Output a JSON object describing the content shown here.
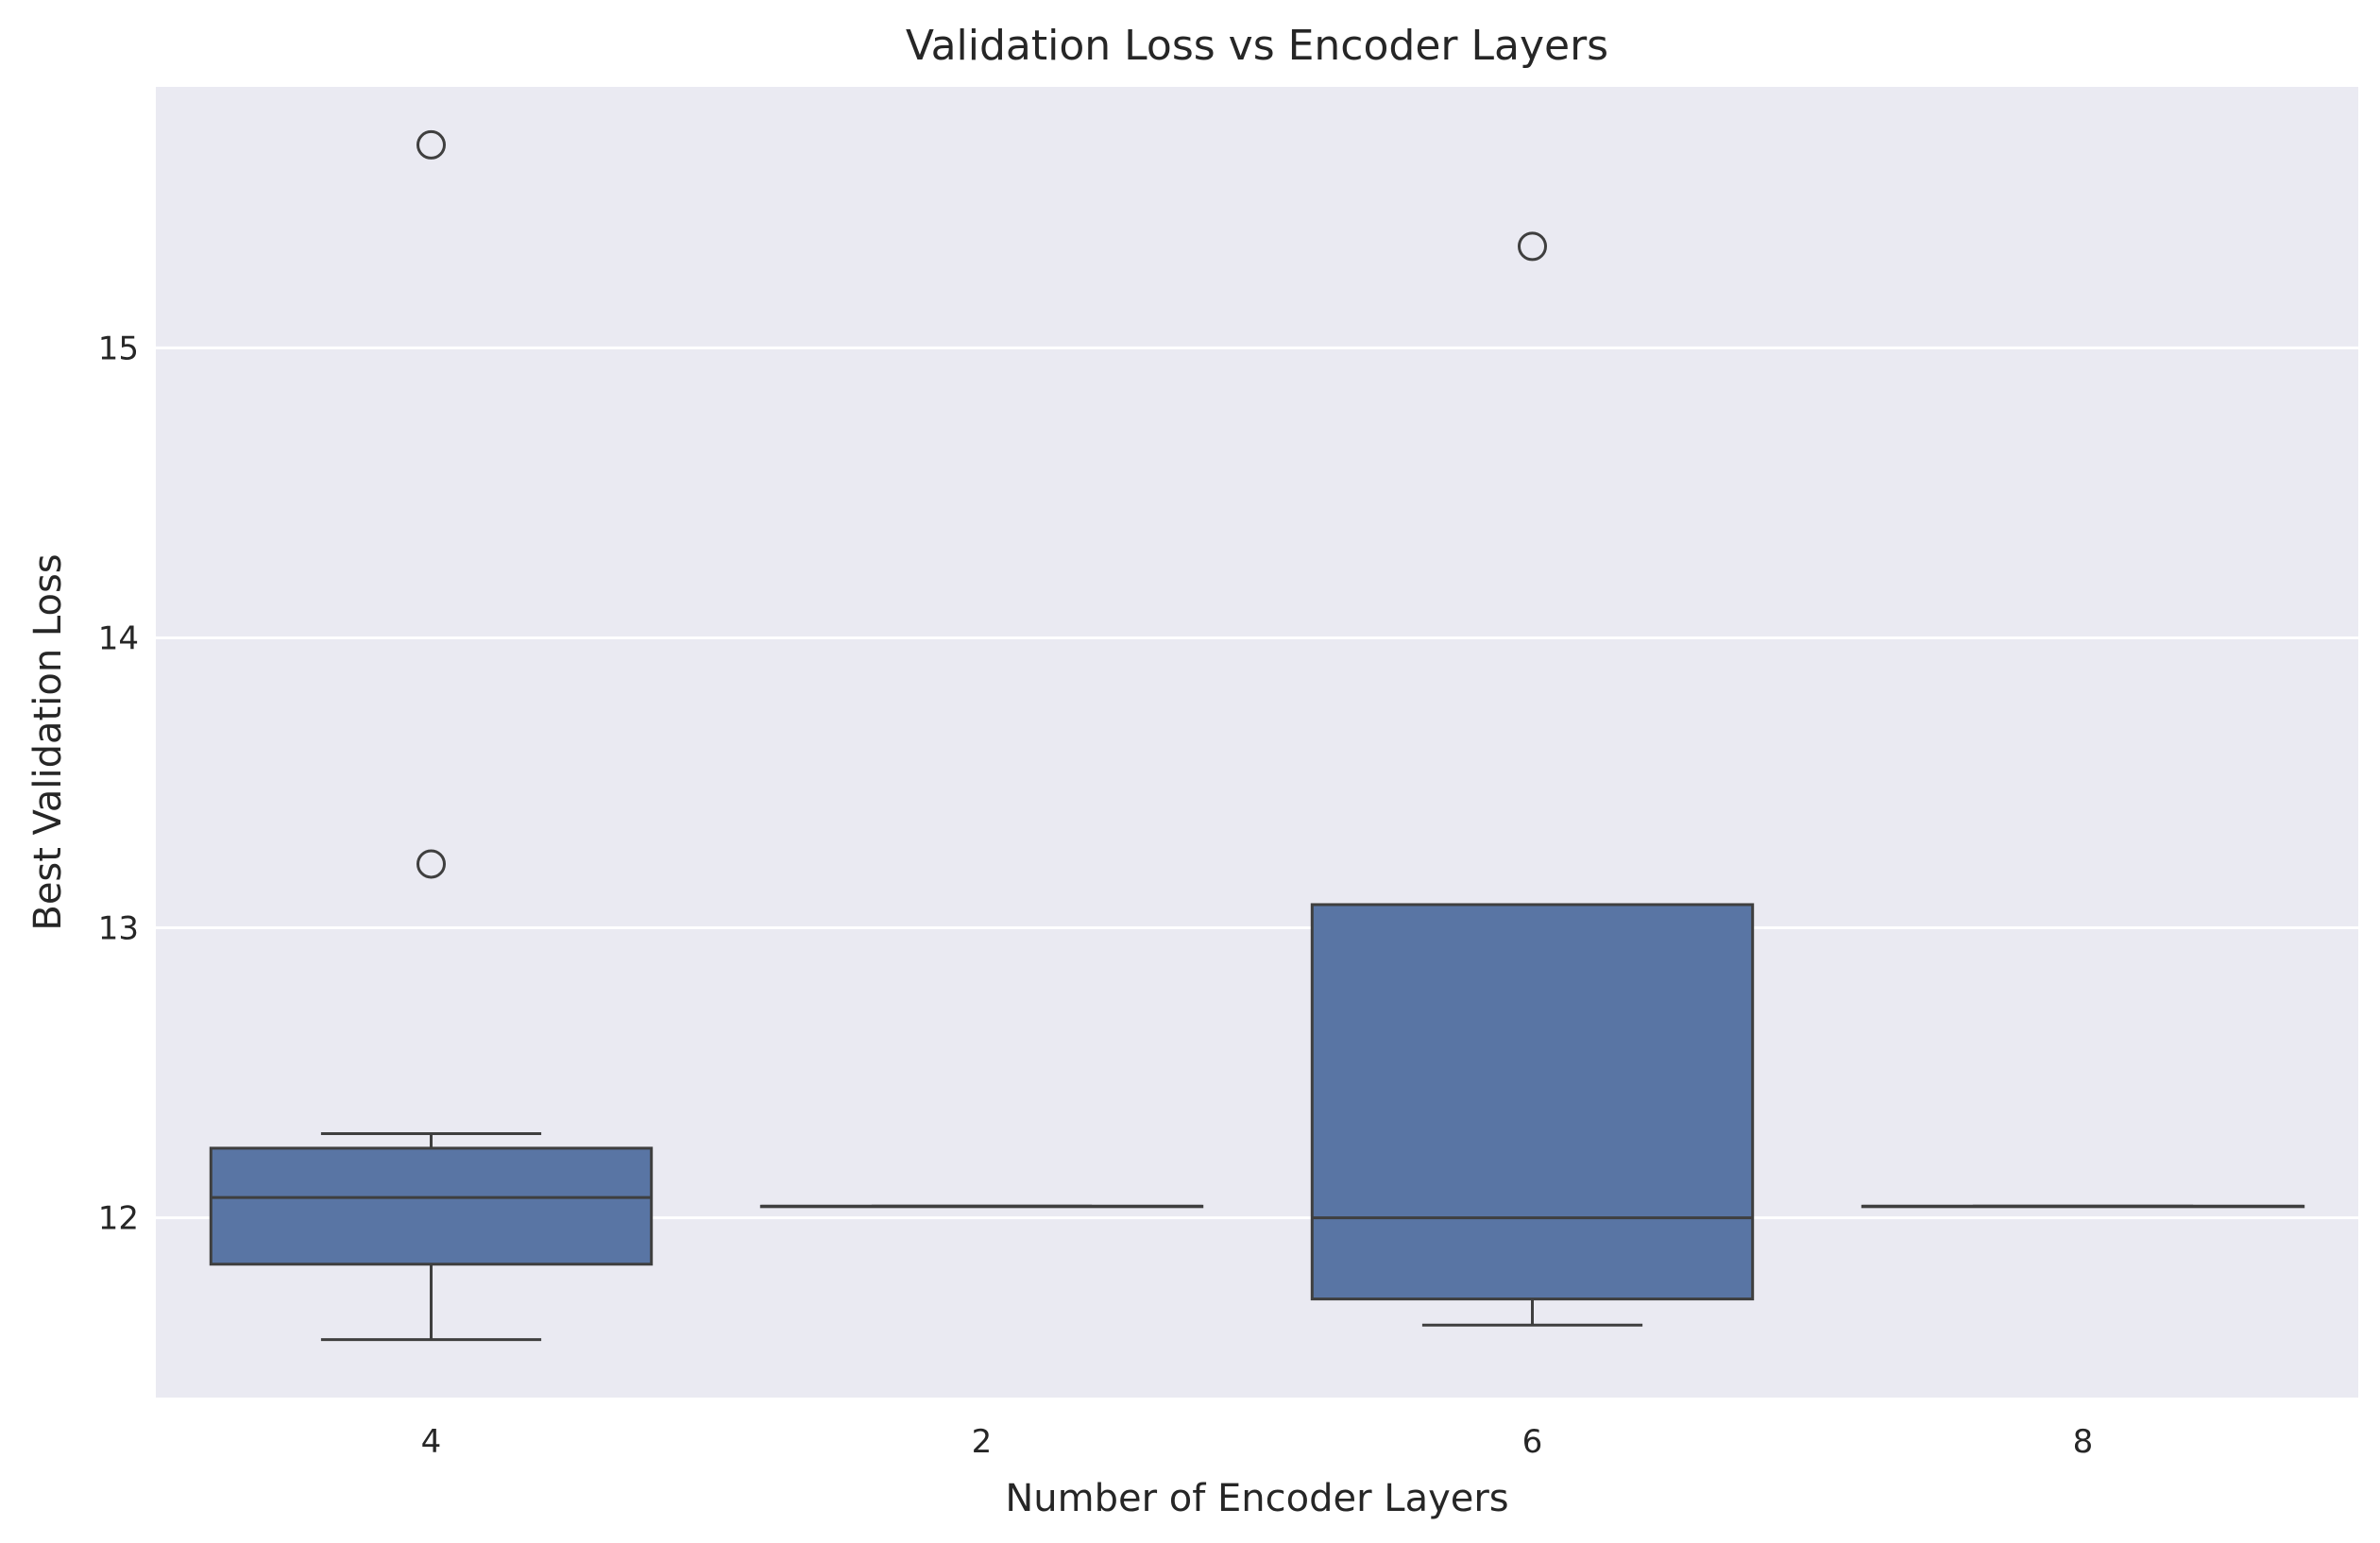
{
  "chart_data": {
    "type": "box",
    "title": "Validation Loss vs Encoder Layers",
    "xlabel": "Number of Encoder Layers",
    "ylabel": "Best Validation Loss",
    "categories": [
      "4",
      "2",
      "6",
      "8"
    ],
    "ylim": [
      11.38,
      15.9
    ],
    "yticks": [
      12,
      13,
      14,
      15
    ],
    "grid": true,
    "box_color": "#5975a4",
    "line_color": "#3f3f3f",
    "background_color": "#eaeaf2",
    "boxes": [
      {
        "category": "4",
        "whisker_low": 11.58,
        "q1": 11.84,
        "median": 12.07,
        "q3": 12.24,
        "whisker_high": 12.29,
        "outliers": [
          13.22,
          15.7
        ]
      },
      {
        "category": "2",
        "whisker_low": 12.04,
        "q1": 12.04,
        "median": 12.04,
        "q3": 12.04,
        "whisker_high": 12.04,
        "outliers": []
      },
      {
        "category": "6",
        "whisker_low": 11.63,
        "q1": 11.72,
        "median": 12.0,
        "q3": 13.08,
        "whisker_high": 13.08,
        "outliers": [
          15.35
        ]
      },
      {
        "category": "8",
        "whisker_low": 12.04,
        "q1": 12.04,
        "median": 12.04,
        "q3": 12.04,
        "whisker_high": 12.04,
        "outliers": []
      }
    ]
  }
}
